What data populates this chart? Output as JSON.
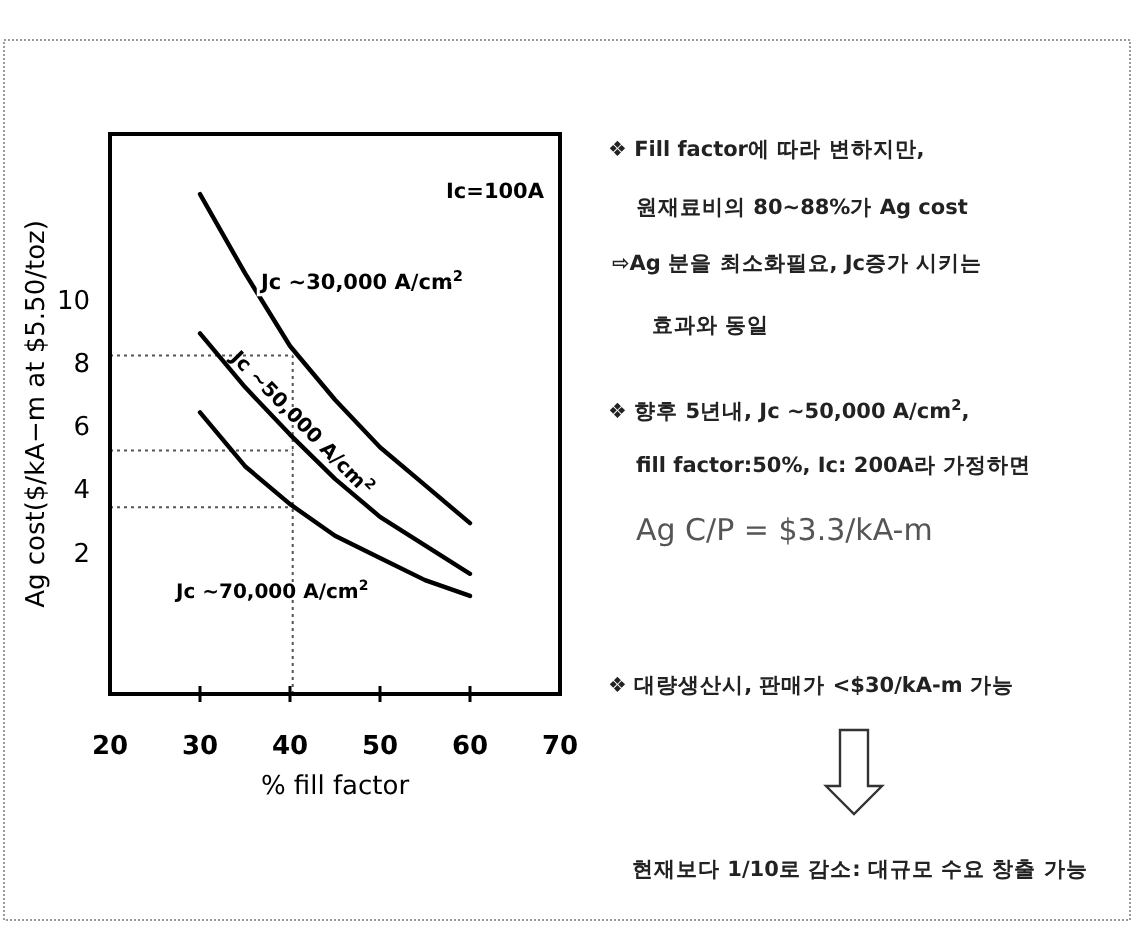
{
  "chart_data": {
    "type": "line",
    "xlabel": "% fill factor",
    "ylabel": "Ag cost($/kA−m at $5.50/toz)",
    "x": [
      30,
      35,
      40,
      45,
      50,
      55,
      60
    ],
    "series": [
      {
        "name": "Jc ~30,000 A/cm$^{2}$",
        "color": "#000000",
        "values": [
          13.3,
          10.8,
          8.5,
          6.8,
          5.3,
          4.1,
          2.9
        ]
      },
      {
        "name": "Jc ~50,000 A/cm$^{2}$",
        "color": "#000000",
        "values": [
          8.9,
          7.2,
          5.7,
          4.3,
          3.1,
          2.2,
          1.3
        ]
      },
      {
        "name": "Jc ~70,000 A/cm$^{2}$",
        "color": "#000000",
        "values": [
          6.4,
          4.7,
          3.5,
          2.5,
          1.8,
          1.1,
          0.6
        ]
      }
    ],
    "xlim": [
      20,
      70
    ],
    "xticks": [
      20,
      30,
      40,
      50,
      60,
      70
    ],
    "ylim": [
      -2.5,
      15.2
    ],
    "yticks": [
      2,
      4,
      6,
      8,
      10
    ],
    "grid": false,
    "marker": "none",
    "line_style": "solid",
    "ref_lines": [
      {
        "axis": "y",
        "value": 8.2,
        "line_style": "dotted"
      },
      {
        "axis": "y",
        "value": 5.2,
        "line_style": "dotted"
      },
      {
        "axis": "y",
        "value": 3.4,
        "line_style": "dotted"
      },
      {
        "axis": "x",
        "value": 40.3,
        "line_style": "dotted"
      }
    ],
    "annotations": [
      "Ic=100A",
      "❖ Fill factor에 따라 변하지만,",
      "원재료비의 80~88%가 Ag cost",
      "⇨Ag 분을 최소화필요, Jc증가 시키는",
      "효과와 동일",
      "❖ 향후 5년내, Jc ~50,000 A/cm$^{2}$,",
      "fill factor:50%, Ic: 200A라 가정하면",
      "Ag C/P = $3.3/kA-m",
      "❖ 대량생산시, 판매가 <$30/kA-m 가능",
      "현재보다 1/10로 감소: 대규모 수요 창출 가능"
    ]
  }
}
